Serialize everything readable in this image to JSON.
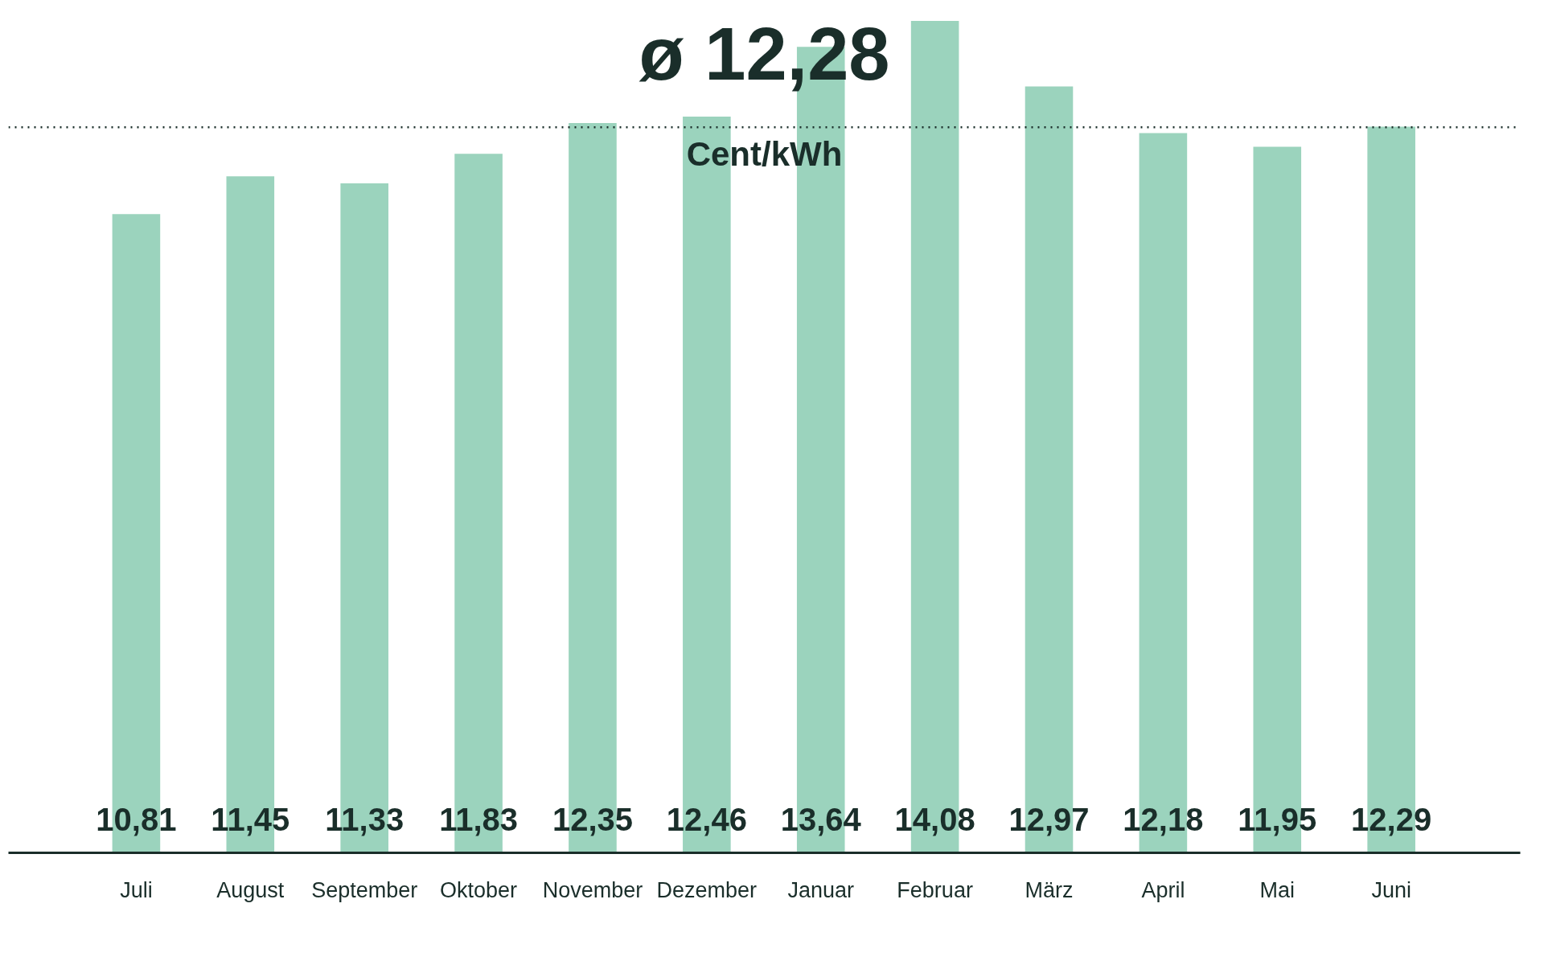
{
  "chart_data": {
    "type": "bar",
    "categories": [
      "Juli",
      "August",
      "September",
      "Oktober",
      "November",
      "Dezember",
      "Januar",
      "Februar",
      "März",
      "April",
      "Mai",
      "Juni"
    ],
    "values": [
      10.81,
      11.45,
      11.33,
      11.83,
      12.35,
      12.46,
      13.64,
      14.08,
      12.97,
      12.18,
      11.95,
      12.29
    ],
    "value_labels": [
      "10,81",
      "11,45",
      "11,33",
      "11,83",
      "12,35",
      "12,46",
      "13,64",
      "14,08",
      "12,97",
      "12,18",
      "11,95",
      "12,29"
    ],
    "color": "#9bd3bd",
    "ref_lines": [
      {
        "axis": "y",
        "value": 12.28,
        "label": "ø 12,28",
        "line_style": "dotted",
        "color": "#1a2e2a"
      }
    ],
    "annotations": [
      "Cent/kWh"
    ]
  }
}
